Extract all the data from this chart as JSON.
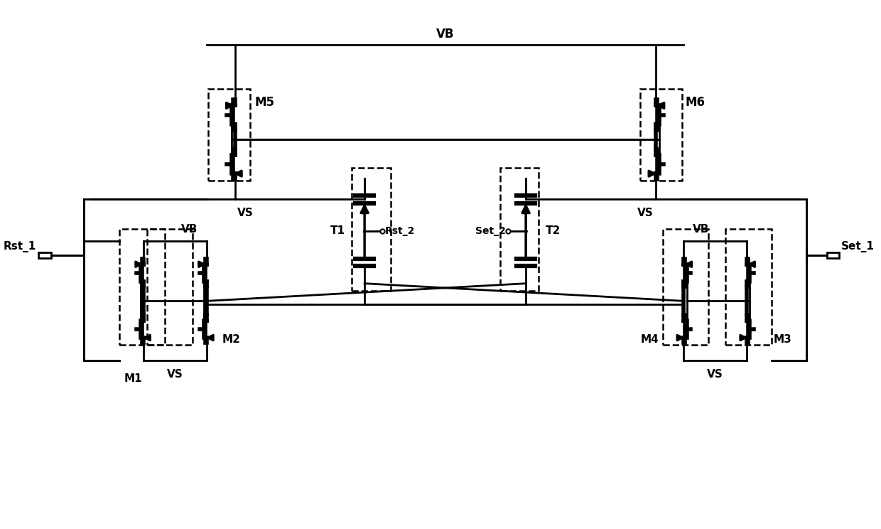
{
  "bg_color": "#ffffff",
  "lc": "#000000",
  "lw": 2.0,
  "lw_thick": 4.5,
  "fs": 11,
  "labels": {
    "VB_top": "VB",
    "VB_left": "VB",
    "VB_right": "VB",
    "VS_M5": "VS",
    "VS_M6": "VS",
    "VS_M12": "VS",
    "VS_M34": "VS",
    "M1": "M1",
    "M2": "M2",
    "M3": "M3",
    "M4": "M4",
    "M5": "M5",
    "M6": "M6",
    "T1": "T1",
    "T2": "T2",
    "Rst_1": "Rst_1",
    "Set_1": "Set_1",
    "Rst_2": "Rst_2",
    "Set_2": "Set_2"
  }
}
